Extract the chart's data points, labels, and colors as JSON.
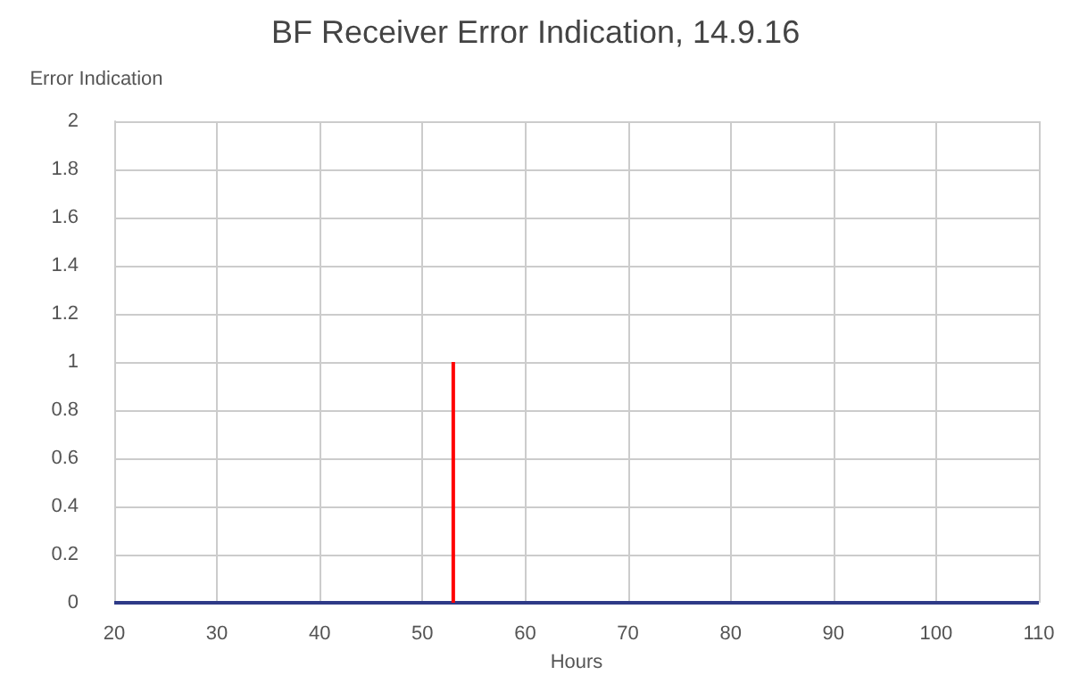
{
  "chart_data": {
    "type": "line",
    "title": "BF Receiver Error Indication, 14.9.16",
    "xlabel": "Hours",
    "ylabel": "Error Indication",
    "series": [
      {
        "color": "#2e3a87",
        "x": [
          20,
          110
        ],
        "values": [
          0,
          0
        ]
      },
      {
        "color": "#ff0000",
        "x": [
          53,
          53
        ],
        "values": [
          0,
          1
        ]
      }
    ],
    "xlim": [
      20,
      110
    ],
    "xticks": [
      20,
      30,
      40,
      50,
      60,
      70,
      80,
      90,
      100,
      110
    ],
    "ylim": [
      0,
      2
    ],
    "yticks": [
      0,
      0.2,
      0.4,
      0.6,
      0.8,
      1,
      1.2,
      1.4,
      1.6,
      1.8,
      2
    ],
    "grid": true,
    "marker": "none",
    "line_style": "solid"
  }
}
